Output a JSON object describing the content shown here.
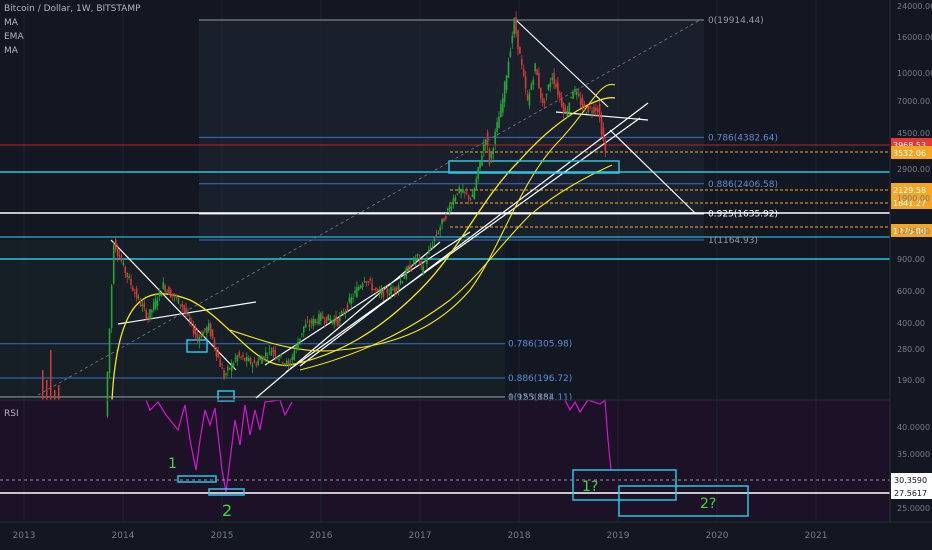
{
  "header": {
    "symbol_title": "Bitcoin / Dollar, 1W, BITSTAMP",
    "indicators": [
      "MA",
      "EMA",
      "MA"
    ]
  },
  "rsi_label": "RSI",
  "colors": {
    "background": "#131722",
    "up": "#26a634",
    "down": "#d23a3a",
    "fib_line": "#3a6fc4",
    "fib_text": "#5c8bd6",
    "cyan": "#29c5e6",
    "white": "#ffffff",
    "yellow": "#f5e616",
    "orange": "#f5a623",
    "rsi": "#d316d3",
    "green_text": "#3ddb3d",
    "price_badge": "#e53935"
  },
  "chart_data": {
    "type": "candlestick",
    "title": "Bitcoin / Dollar, 1W, BITSTAMP",
    "x_ticks": [
      "2013",
      "2014",
      "2015",
      "2016",
      "2017",
      "2018",
      "2019",
      "2020",
      "2021"
    ],
    "y_ticks": [
      "24000.00",
      "16000.00",
      "10000.00",
      "7000.00",
      "4500.00",
      "2900.00",
      "1900.00",
      "1275.00",
      "900.00",
      "600.00",
      "400.00",
      "280.00",
      "190.00"
    ],
    "price_path": [
      [
        "2013-11-01",
        120
      ],
      [
        "2013-12-02",
        1150
      ],
      [
        "2014-01-06",
        820
      ],
      [
        "2014-02-24",
        560
      ],
      [
        "2014-04-07",
        430
      ],
      [
        "2014-06-02",
        650
      ],
      [
        "2014-08-11",
        500
      ],
      [
        "2014-10-06",
        330
      ],
      [
        "2014-11-17",
        380
      ],
      [
        "2015-01-12",
        200
      ],
      [
        "2015-03-02",
        260
      ],
      [
        "2015-05-04",
        235
      ],
      [
        "2015-07-06",
        285
      ],
      [
        "2015-09-07",
        230
      ],
      [
        "2015-11-02",
        380
      ],
      [
        "2016-01-04",
        430
      ],
      [
        "2016-03-07",
        410
      ],
      [
        "2016-06-13",
        720
      ],
      [
        "2016-08-01",
        580
      ],
      [
        "2016-10-03",
        620
      ],
      [
        "2016-12-26",
        950
      ],
      [
        "2017-01-09",
        800
      ],
      [
        "2017-03-06",
        1250
      ],
      [
        "2017-05-22",
        2200
      ],
      [
        "2017-07-17",
        2000
      ],
      [
        "2017-09-04",
        4500
      ],
      [
        "2017-09-18",
        3200
      ],
      [
        "2017-11-06",
        7200
      ],
      [
        "2017-12-18",
        19500
      ],
      [
        "2018-02-05",
        6900
      ],
      [
        "2018-03-05",
        11000
      ],
      [
        "2018-04-02",
        6600
      ],
      [
        "2018-05-07",
        9800
      ],
      [
        "2018-06-25",
        5900
      ],
      [
        "2018-07-23",
        8200
      ],
      [
        "2018-09-03",
        6300
      ],
      [
        "2018-10-22",
        6400
      ],
      [
        "2018-11-19",
        3600
      ]
    ],
    "fib_levels_upper": [
      {
        "ratio": "0",
        "value": 19914.44,
        "label": "0(19914.44)"
      },
      {
        "ratio": "0.786",
        "value": 4382.64,
        "label": "0.786(4382.64)"
      },
      {
        "ratio": "0.886",
        "value": 2406.58,
        "label": "0.886(2406.58)"
      },
      {
        "ratio": "0.925",
        "value": 1635.92,
        "label": "0.925(1635.92)"
      },
      {
        "ratio": "1",
        "value": 1164.93,
        "label": "1(1164.93)"
      }
    ],
    "fib_levels_lower": [
      {
        "ratio": "0.786",
        "value": 305.98,
        "label": "0.786(305.98)"
      },
      {
        "ratio": "0.886",
        "value": 196.72,
        "label": "0.886(196.72)"
      },
      {
        "ratio": "0.925",
        "value": 154.11,
        "label": "0.925(154.11)"
      },
      {
        "ratio": "1",
        "value": 153.88,
        "label": "1(153.88)"
      }
    ],
    "price_badges": [
      {
        "value": 3968.53,
        "label": "3968.53",
        "color": "#e53935"
      },
      {
        "value": 3532.06,
        "label": "3532.06",
        "color": "#f5a623"
      },
      {
        "value": 2129.58,
        "label": "2129.58",
        "color": "#f5a623"
      },
      {
        "value": 1841.27,
        "label": "1841.27",
        "color": "#f5a623"
      },
      {
        "value": 1275.0,
        "label": "1275.00",
        "color": "#f5a623"
      }
    ],
    "rsi": {
      "y_ticks": [
        "40.0000",
        "35.0000",
        "25.0000"
      ],
      "levels": [
        {
          "value": 30.359,
          "label": "30.3590"
        },
        {
          "value": 27.5617,
          "label": "27.5617"
        }
      ],
      "annotations": [
        "1",
        "2",
        "1?",
        "2?"
      ]
    }
  }
}
